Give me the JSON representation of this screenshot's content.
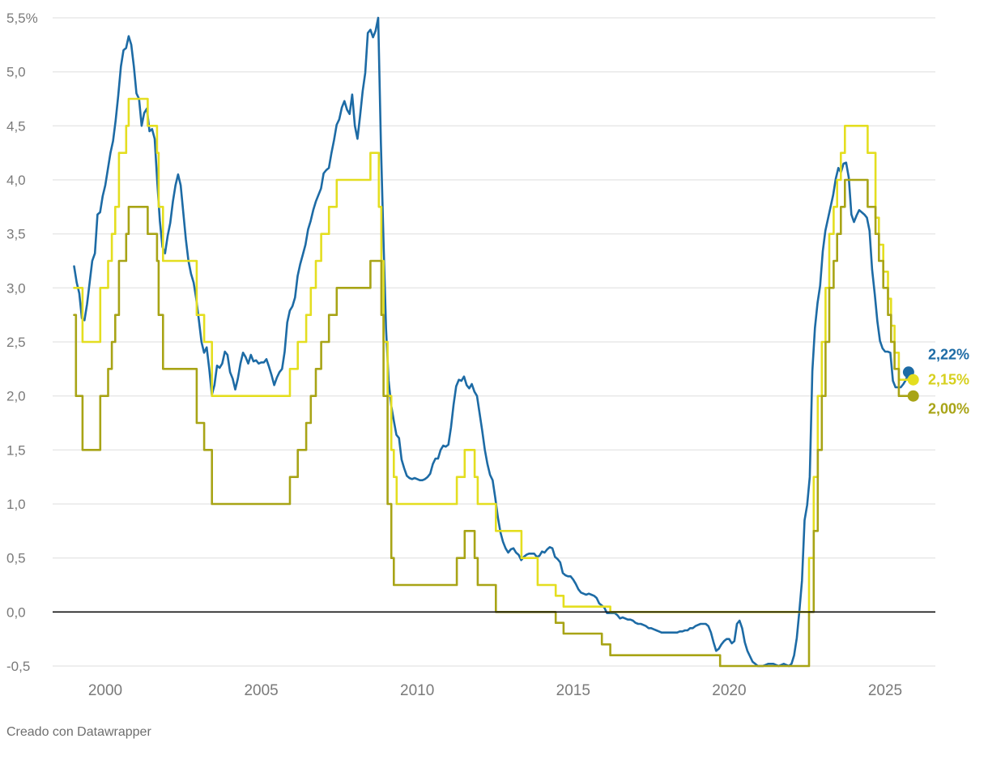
{
  "footer": {
    "attribution": "Creado con Datawrapper"
  },
  "chart_data": {
    "type": "line",
    "title": "",
    "grid": true,
    "legend_position": "none",
    "colors": {
      "grid": "#dedede",
      "zero_line": "#111111",
      "tick_text": "#7a7a7a",
      "blue": "#1d6ba5",
      "yellow": "#e4de20",
      "olive": "#a8a416"
    },
    "x_axis": {
      "range": [
        1998.3,
        2026.6
      ],
      "ticks": [
        {
          "t": 2000,
          "label": "2000"
        },
        {
          "t": 2005,
          "label": "2005"
        },
        {
          "t": 2010,
          "label": "2010"
        },
        {
          "t": 2015,
          "label": "2015"
        },
        {
          "t": 2020,
          "label": "2020"
        },
        {
          "t": 2025,
          "label": "2025"
        }
      ]
    },
    "y_axis": {
      "range": [
        -0.5,
        5.5
      ],
      "zero_line": true,
      "ticks": [
        {
          "v": 5.5,
          "label": "5,5%"
        },
        {
          "v": 5.0,
          "label": "5,0"
        },
        {
          "v": 4.5,
          "label": "4,5"
        },
        {
          "v": 4.0,
          "label": "4,0"
        },
        {
          "v": 3.5,
          "label": "3,5"
        },
        {
          "v": 3.0,
          "label": "3,0"
        },
        {
          "v": 2.5,
          "label": "2,5"
        },
        {
          "v": 2.0,
          "label": "2,0"
        },
        {
          "v": 1.5,
          "label": "1,5"
        },
        {
          "v": 1.0,
          "label": "1,0"
        },
        {
          "v": 0.5,
          "label": "0,5"
        },
        {
          "v": 0.0,
          "label": "0,0"
        },
        {
          "v": -0.5,
          "label": "-0,5"
        }
      ]
    },
    "series": [
      {
        "id": "market-rate-blue",
        "color": "#1d6ba5",
        "style": "linear",
        "end_label": "2,22%",
        "end_value": 2.22,
        "x_start": 1999.0,
        "x_step": 0.0833333,
        "values": [
          3.2,
          3.05,
          2.95,
          2.72,
          2.7,
          2.85,
          3.05,
          3.25,
          3.32,
          3.68,
          3.7,
          3.85,
          3.95,
          4.1,
          4.25,
          4.36,
          4.55,
          4.78,
          5.05,
          5.2,
          5.22,
          5.33,
          5.25,
          5.05,
          4.8,
          4.75,
          4.5,
          4.62,
          4.66,
          4.45,
          4.47,
          4.38,
          3.98,
          3.62,
          3.38,
          3.32,
          3.48,
          3.6,
          3.8,
          3.95,
          4.05,
          3.95,
          3.7,
          3.45,
          3.25,
          3.13,
          3.05,
          2.9,
          2.7,
          2.5,
          2.4,
          2.45,
          2.25,
          2.01,
          2.1,
          2.28,
          2.26,
          2.3,
          2.41,
          2.38,
          2.22,
          2.16,
          2.06,
          2.16,
          2.3,
          2.4,
          2.36,
          2.3,
          2.38,
          2.32,
          2.33,
          2.3,
          2.31,
          2.31,
          2.34,
          2.27,
          2.19,
          2.1,
          2.17,
          2.22,
          2.25,
          2.41,
          2.68,
          2.79,
          2.83,
          2.91,
          3.11,
          3.22,
          3.31,
          3.4,
          3.54,
          3.62,
          3.72,
          3.8,
          3.86,
          3.92,
          4.06,
          4.09,
          4.11,
          4.25,
          4.37,
          4.51,
          4.56,
          4.67,
          4.73,
          4.65,
          4.61,
          4.79,
          4.5,
          4.38,
          4.59,
          4.82,
          4.99,
          5.36,
          5.39,
          5.32,
          5.38,
          5.5,
          4.35,
          3.45,
          2.62,
          2.14,
          1.91,
          1.77,
          1.64,
          1.61,
          1.41,
          1.33,
          1.26,
          1.24,
          1.23,
          1.24,
          1.23,
          1.22,
          1.22,
          1.23,
          1.25,
          1.28,
          1.37,
          1.42,
          1.42,
          1.5,
          1.54,
          1.53,
          1.55,
          1.71,
          1.92,
          2.09,
          2.15,
          2.14,
          2.18,
          2.1,
          2.07,
          2.11,
          2.04,
          2.0,
          1.84,
          1.68,
          1.5,
          1.37,
          1.27,
          1.22,
          1.06,
          0.88,
          0.74,
          0.65,
          0.59,
          0.55,
          0.58,
          0.59,
          0.55,
          0.53,
          0.48,
          0.51,
          0.53,
          0.54,
          0.54,
          0.54,
          0.51,
          0.52,
          0.56,
          0.55,
          0.58,
          0.6,
          0.59,
          0.51,
          0.49,
          0.46,
          0.36,
          0.34,
          0.33,
          0.33,
          0.3,
          0.26,
          0.21,
          0.18,
          0.17,
          0.16,
          0.17,
          0.16,
          0.15,
          0.13,
          0.08,
          0.06,
          0.04,
          -0.01,
          -0.01,
          -0.01,
          -0.01,
          -0.03,
          -0.06,
          -0.05,
          -0.06,
          -0.07,
          -0.07,
          -0.08,
          -0.1,
          -0.11,
          -0.11,
          -0.12,
          -0.13,
          -0.15,
          -0.15,
          -0.16,
          -0.17,
          -0.18,
          -0.19,
          -0.19,
          -0.19,
          -0.19,
          -0.19,
          -0.19,
          -0.19,
          -0.18,
          -0.18,
          -0.17,
          -0.17,
          -0.15,
          -0.15,
          -0.13,
          -0.12,
          -0.11,
          -0.11,
          -0.11,
          -0.13,
          -0.19,
          -0.28,
          -0.36,
          -0.34,
          -0.3,
          -0.27,
          -0.25,
          -0.25,
          -0.29,
          -0.27,
          -0.11,
          -0.08,
          -0.15,
          -0.28,
          -0.36,
          -0.41,
          -0.46,
          -0.48,
          -0.5,
          -0.5,
          -0.5,
          -0.49,
          -0.48,
          -0.48,
          -0.48,
          -0.49,
          -0.5,
          -0.49,
          -0.48,
          -0.49,
          -0.5,
          -0.48,
          -0.4,
          -0.24,
          0.01,
          0.29,
          0.85,
          0.99,
          1.25,
          2.23,
          2.63,
          2.86,
          3.02,
          3.34,
          3.53,
          3.64,
          3.75,
          3.86,
          4.01,
          4.11,
          4.07,
          4.15,
          4.16,
          4.02,
          3.68,
          3.61,
          3.67,
          3.72,
          3.7,
          3.68,
          3.65,
          3.53,
          3.17,
          2.94,
          2.69,
          2.51,
          2.44,
          2.41,
          2.41,
          2.4,
          2.14,
          2.08,
          2.08,
          2.08,
          2.11,
          2.15,
          2.22
        ]
      },
      {
        "id": "policy-rate-yellow",
        "color": "#e4de20",
        "label_color": "#d6d01e",
        "style": "step-after",
        "end_label": "2,15%",
        "end_value": 2.15,
        "t_end": 2025.9,
        "points": [
          [
            1999.0,
            3.0
          ],
          [
            1999.27,
            2.5
          ],
          [
            1999.84,
            3.0
          ],
          [
            2000.09,
            3.25
          ],
          [
            2000.21,
            3.5
          ],
          [
            2000.32,
            3.75
          ],
          [
            2000.44,
            4.25
          ],
          [
            2000.67,
            4.5
          ],
          [
            2000.75,
            4.75
          ],
          [
            2001.36,
            4.5
          ],
          [
            2001.66,
            4.25
          ],
          [
            2001.71,
            3.75
          ],
          [
            2001.85,
            3.25
          ],
          [
            2002.93,
            2.75
          ],
          [
            2003.17,
            2.5
          ],
          [
            2003.42,
            2.0
          ],
          [
            2005.92,
            2.25
          ],
          [
            2006.17,
            2.5
          ],
          [
            2006.44,
            2.75
          ],
          [
            2006.59,
            3.0
          ],
          [
            2006.75,
            3.25
          ],
          [
            2006.92,
            3.5
          ],
          [
            2007.17,
            3.75
          ],
          [
            2007.42,
            4.0
          ],
          [
            2008.5,
            4.25
          ],
          [
            2008.77,
            3.75
          ],
          [
            2008.85,
            3.25
          ],
          [
            2008.92,
            2.5
          ],
          [
            2009.05,
            2.0
          ],
          [
            2009.17,
            1.5
          ],
          [
            2009.25,
            1.25
          ],
          [
            2009.34,
            1.0
          ],
          [
            2011.27,
            1.25
          ],
          [
            2011.52,
            1.5
          ],
          [
            2011.84,
            1.25
          ],
          [
            2011.94,
            1.0
          ],
          [
            2012.52,
            0.75
          ],
          [
            2013.34,
            0.5
          ],
          [
            2013.86,
            0.25
          ],
          [
            2014.44,
            0.15
          ],
          [
            2014.69,
            0.05
          ],
          [
            2016.19,
            0.0
          ],
          [
            2022.56,
            0.5
          ],
          [
            2022.71,
            1.25
          ],
          [
            2022.84,
            2.0
          ],
          [
            2022.97,
            2.5
          ],
          [
            2023.09,
            3.0
          ],
          [
            2023.21,
            3.5
          ],
          [
            2023.35,
            3.75
          ],
          [
            2023.46,
            4.0
          ],
          [
            2023.58,
            4.25
          ],
          [
            2023.71,
            4.5
          ],
          [
            2024.44,
            4.25
          ],
          [
            2024.69,
            3.65
          ],
          [
            2024.8,
            3.4
          ],
          [
            2024.94,
            3.15
          ],
          [
            2025.09,
            2.9
          ],
          [
            2025.19,
            2.65
          ],
          [
            2025.3,
            2.4
          ],
          [
            2025.44,
            2.15
          ]
        ]
      },
      {
        "id": "deposit-rate-olive",
        "color": "#a8a416",
        "style": "step-after",
        "end_label": "2,00%",
        "end_value": 2.0,
        "t_end": 2025.9,
        "points": [
          [
            1999.0,
            2.75
          ],
          [
            1999.06,
            2.0
          ],
          [
            1999.27,
            1.5
          ],
          [
            1999.84,
            2.0
          ],
          [
            2000.09,
            2.25
          ],
          [
            2000.21,
            2.5
          ],
          [
            2000.32,
            2.75
          ],
          [
            2000.44,
            3.25
          ],
          [
            2000.67,
            3.5
          ],
          [
            2000.75,
            3.75
          ],
          [
            2001.36,
            3.5
          ],
          [
            2001.66,
            3.25
          ],
          [
            2001.71,
            2.75
          ],
          [
            2001.85,
            2.25
          ],
          [
            2002.93,
            1.75
          ],
          [
            2003.17,
            1.5
          ],
          [
            2003.42,
            1.0
          ],
          [
            2005.92,
            1.25
          ],
          [
            2006.17,
            1.5
          ],
          [
            2006.44,
            1.75
          ],
          [
            2006.59,
            2.0
          ],
          [
            2006.75,
            2.25
          ],
          [
            2006.92,
            2.5
          ],
          [
            2007.17,
            2.75
          ],
          [
            2007.42,
            3.0
          ],
          [
            2008.5,
            3.25
          ],
          [
            2008.85,
            2.75
          ],
          [
            2008.92,
            2.0
          ],
          [
            2009.05,
            1.0
          ],
          [
            2009.17,
            0.5
          ],
          [
            2009.25,
            0.25
          ],
          [
            2011.27,
            0.5
          ],
          [
            2011.52,
            0.75
          ],
          [
            2011.84,
            0.5
          ],
          [
            2011.94,
            0.25
          ],
          [
            2012.52,
            0.0
          ],
          [
            2014.44,
            -0.1
          ],
          [
            2014.69,
            -0.2
          ],
          [
            2015.92,
            -0.3
          ],
          [
            2016.19,
            -0.4
          ],
          [
            2019.71,
            -0.5
          ],
          [
            2022.56,
            0.0
          ],
          [
            2022.71,
            0.75
          ],
          [
            2022.84,
            1.5
          ],
          [
            2022.97,
            2.0
          ],
          [
            2023.09,
            2.5
          ],
          [
            2023.21,
            3.0
          ],
          [
            2023.35,
            3.25
          ],
          [
            2023.46,
            3.5
          ],
          [
            2023.58,
            3.75
          ],
          [
            2023.71,
            4.0
          ],
          [
            2024.44,
            3.75
          ],
          [
            2024.69,
            3.5
          ],
          [
            2024.8,
            3.25
          ],
          [
            2024.94,
            3.0
          ],
          [
            2025.09,
            2.75
          ],
          [
            2025.19,
            2.5
          ],
          [
            2025.3,
            2.25
          ],
          [
            2025.44,
            2.0
          ]
        ]
      }
    ]
  }
}
